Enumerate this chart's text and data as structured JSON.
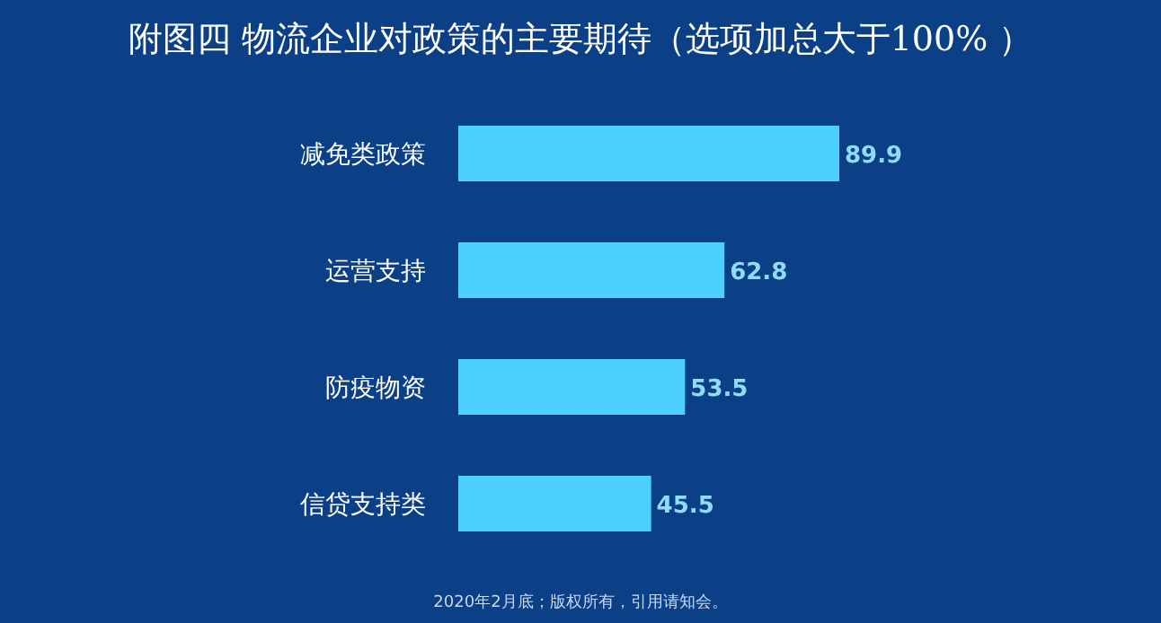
{
  "chart_data": {
    "type": "bar",
    "orientation": "horizontal",
    "title": "附图四  物流企业对政策的主要期待（选项加总大于100% ）",
    "categories": [
      "减免类政策",
      "运营支持",
      "防疫物资",
      "信贷支持类"
    ],
    "values": [
      89.9,
      62.8,
      53.5,
      45.5
    ],
    "color": "#4dcfff",
    "data_labels": true,
    "annotations": [
      "2020年2月底；版权所有，引用请知会。"
    ]
  }
}
